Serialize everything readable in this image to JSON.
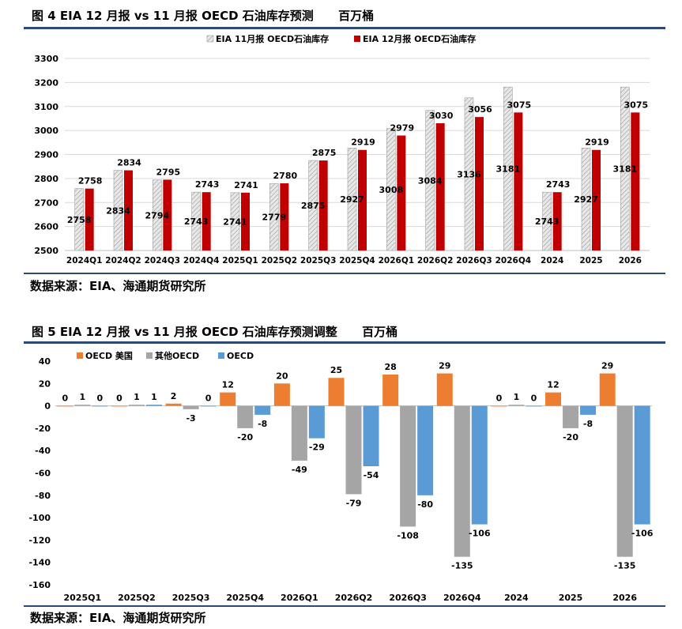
{
  "figure4": {
    "title": "图 4 EIA 12 月报 vs 11 月报 OECD 石油库存预测      百万桶",
    "source": "数据来源：EIA、海通期货研究所"
  },
  "figure5": {
    "title": "图 5 EIA 12 月报 vs 11 月报 OECD 石油库存预测调整      百万桶",
    "source": "数据来源：EIA、海通期货研究所"
  },
  "colors": {
    "nov_fill": "#e8e8e8",
    "dec_fill": "#c00000",
    "us": "#ed7d31",
    "other": "#a5a5a5",
    "oecd": "#5b9bd5",
    "rule": "#2c4a74"
  },
  "chart_data": [
    {
      "type": "bar",
      "title": "EIA 12 月报 vs 11 月报 OECD 石油库存预测",
      "unit": "百万桶",
      "categories": [
        "2024Q1",
        "2024Q2",
        "2024Q3",
        "2024Q4",
        "2025Q1",
        "2025Q2",
        "2025Q3",
        "2025Q4",
        "2026Q1",
        "2026Q2",
        "2026Q3",
        "2026Q4",
        "2024",
        "2025",
        "2026"
      ],
      "series": [
        {
          "name": "EIA 11月报 OECD石油库存",
          "values": [
            2758,
            2834,
            2794,
            2743,
            2741,
            2779,
            2875,
            2927,
            3008,
            3084,
            3136,
            3181,
            2743,
            2927,
            3181
          ]
        },
        {
          "name": "EIA 12月报 OECD石油库存",
          "values": [
            2758,
            2834,
            2795,
            2743,
            2741,
            2780,
            2875,
            2919,
            2979,
            3030,
            3056,
            3075,
            2743,
            2919,
            3075
          ]
        }
      ],
      "ylim": [
        2500,
        3300
      ],
      "yticks": [
        2500,
        2600,
        2700,
        2800,
        2900,
        3000,
        3100,
        3200,
        3300
      ],
      "legend": "top-center",
      "grid": true
    },
    {
      "type": "bar",
      "title": "EIA 12 月报 vs 11 月报 OECD 石油库存预测调整",
      "unit": "百万桶",
      "categories": [
        "2025Q1",
        "2025Q2",
        "2025Q3",
        "2025Q4",
        "2026Q1",
        "2026Q2",
        "2026Q3",
        "2026Q4",
        "2024",
        "2025",
        "2026"
      ],
      "series": [
        {
          "name": "OECD 美国",
          "values": [
            0,
            0,
            2,
            12,
            20,
            25,
            28,
            29,
            0,
            12,
            29
          ]
        },
        {
          "name": "其他OECD",
          "values": [
            1,
            1,
            -3,
            -20,
            -49,
            -79,
            -108,
            -135,
            1,
            -20,
            -135
          ]
        },
        {
          "name": "OECD",
          "values": [
            0,
            1,
            0,
            -8,
            -29,
            -54,
            -80,
            -106,
            0,
            -8,
            -106
          ]
        }
      ],
      "ylim": [
        -160,
        40
      ],
      "yticks": [
        -160,
        -140,
        -120,
        -100,
        -80,
        -60,
        -40,
        -20,
        0,
        20,
        40
      ],
      "legend": "top-left",
      "grid": false
    }
  ]
}
